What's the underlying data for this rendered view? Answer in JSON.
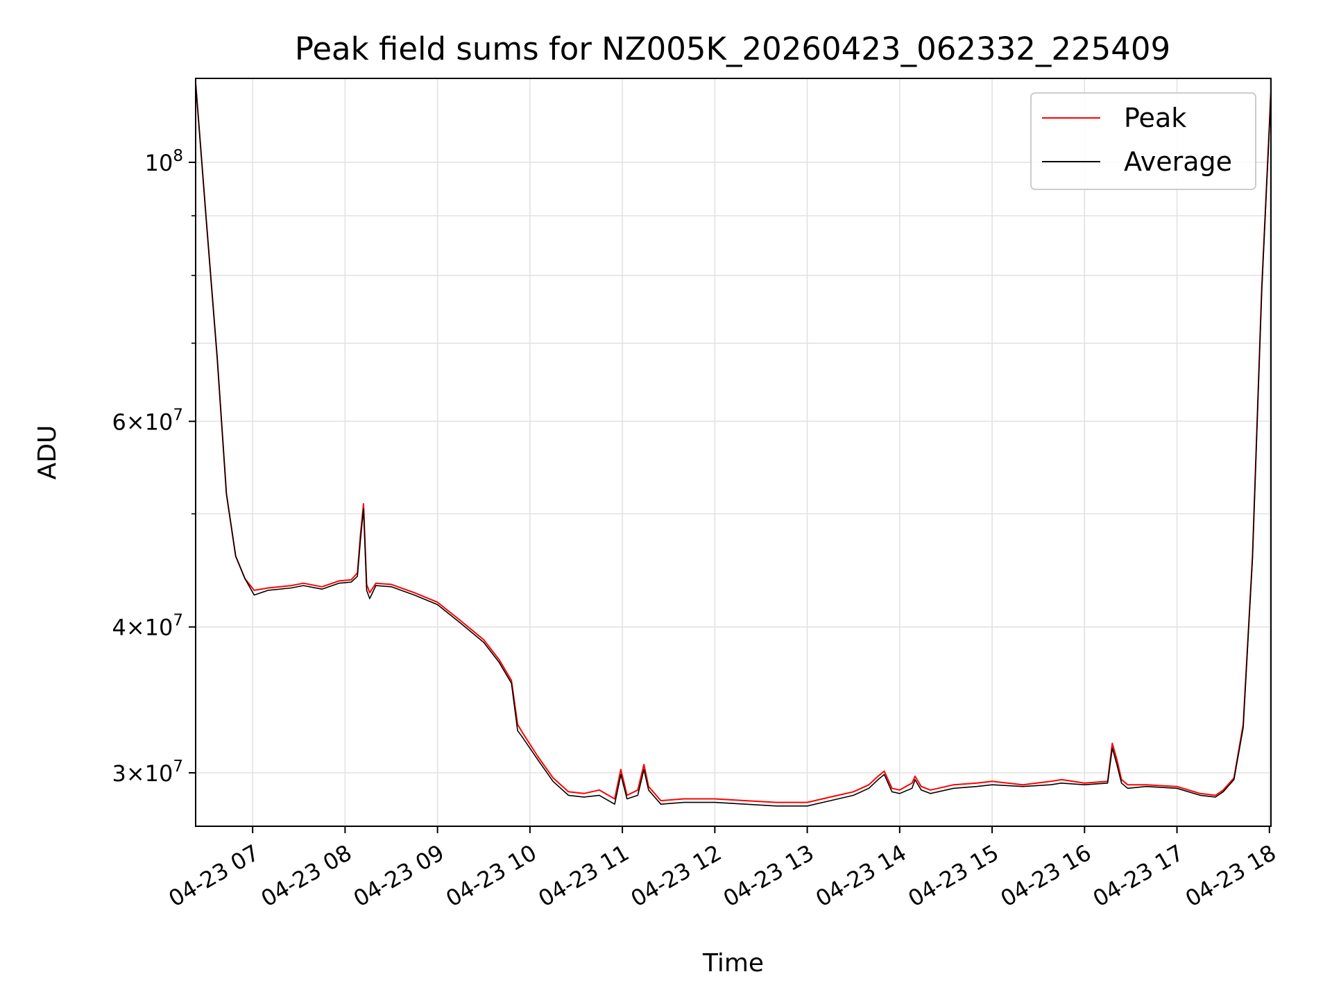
{
  "chart_data": {
    "type": "line",
    "title": "Peak field sums for NZ005K_20260423_062332_225409",
    "xlabel": "Time",
    "ylabel": "ADU",
    "y_scale": "log",
    "xlim": [
      "2026-04-23 06:23",
      "2026-04-23 18:01"
    ],
    "ylim": [
      27000000,
      118000000
    ],
    "grid": true,
    "legend_position": "top-right",
    "x_ticks": [
      {
        "value": "2026-04-23 07:00",
        "label": "04-23 07"
      },
      {
        "value": "2026-04-23 08:00",
        "label": "04-23 08"
      },
      {
        "value": "2026-04-23 09:00",
        "label": "04-23 09"
      },
      {
        "value": "2026-04-23 10:00",
        "label": "04-23 10"
      },
      {
        "value": "2026-04-23 11:00",
        "label": "04-23 11"
      },
      {
        "value": "2026-04-23 12:00",
        "label": "04-23 12"
      },
      {
        "value": "2026-04-23 13:00",
        "label": "04-23 13"
      },
      {
        "value": "2026-04-23 14:00",
        "label": "04-23 14"
      },
      {
        "value": "2026-04-23 15:00",
        "label": "04-23 15"
      },
      {
        "value": "2026-04-23 16:00",
        "label": "04-23 16"
      },
      {
        "value": "2026-04-23 17:00",
        "label": "04-23 17"
      },
      {
        "value": "2026-04-23 18:00",
        "label": "04-23 18"
      }
    ],
    "y_major_ticks": [
      {
        "value": 30000000,
        "label_mantissa": "3×10",
        "label_exp": "7"
      },
      {
        "value": 40000000,
        "label_mantissa": "4×10",
        "label_exp": "7"
      },
      {
        "value": 60000000,
        "label_mantissa": "6×10",
        "label_exp": "7"
      },
      {
        "value": 100000000,
        "label_mantissa": "10",
        "label_exp": "8"
      }
    ],
    "y_minor_ticks": [
      50000000,
      70000000,
      80000000,
      90000000
    ],
    "series": [
      {
        "name": "Peak",
        "color": "#ff0000",
        "x": [
          "2026-04-23 06:23",
          "2026-04-23 06:30",
          "2026-04-23 06:37",
          "2026-04-23 06:43",
          "2026-04-23 06:49",
          "2026-04-23 06:55",
          "2026-04-23 07:01",
          "2026-04-23 07:10",
          "2026-04-23 07:25",
          "2026-04-23 07:33",
          "2026-04-23 07:45",
          "2026-04-23 07:56",
          "2026-04-23 08:04",
          "2026-04-23 08:08",
          "2026-04-23 08:10",
          "2026-04-23 08:12",
          "2026-04-23 08:14",
          "2026-04-23 08:16",
          "2026-04-23 08:20",
          "2026-04-23 08:30",
          "2026-04-23 08:45",
          "2026-04-23 09:00",
          "2026-04-23 09:15",
          "2026-04-23 09:30",
          "2026-04-23 09:40",
          "2026-04-23 09:48",
          "2026-04-23 09:52",
          "2026-04-23 09:55",
          "2026-04-23 10:05",
          "2026-04-23 10:15",
          "2026-04-23 10:25",
          "2026-04-23 10:35",
          "2026-04-23 10:45",
          "2026-04-23 10:55",
          "2026-04-23 10:59",
          "2026-04-23 11:03",
          "2026-04-23 11:10",
          "2026-04-23 11:14",
          "2026-04-23 11:17",
          "2026-04-23 11:25",
          "2026-04-23 11:40",
          "2026-04-23 12:00",
          "2026-04-23 12:20",
          "2026-04-23 12:40",
          "2026-04-23 13:00",
          "2026-04-23 13:15",
          "2026-04-23 13:30",
          "2026-04-23 13:40",
          "2026-04-23 13:46",
          "2026-04-23 13:50",
          "2026-04-23 13:55",
          "2026-04-23 14:00",
          "2026-04-23 14:08",
          "2026-04-23 14:10",
          "2026-04-23 14:14",
          "2026-04-23 14:20",
          "2026-04-23 14:35",
          "2026-04-23 14:50",
          "2026-04-23 15:00",
          "2026-04-23 15:20",
          "2026-04-23 15:38",
          "2026-04-23 15:45",
          "2026-04-23 16:00",
          "2026-04-23 16:15",
          "2026-04-23 16:18",
          "2026-04-23 16:21",
          "2026-04-23 16:24",
          "2026-04-23 16:28",
          "2026-04-23 16:40",
          "2026-04-23 17:00",
          "2026-04-23 17:15",
          "2026-04-23 17:25",
          "2026-04-23 17:30",
          "2026-04-23 17:37",
          "2026-04-23 17:43",
          "2026-04-23 17:49",
          "2026-04-23 17:55",
          "2026-04-23 18:01"
        ],
        "values": [
          117000000,
          89000000,
          68000000,
          52000000,
          46000000,
          44000000,
          43000000,
          43200000,
          43400000,
          43600000,
          43300000,
          43800000,
          43900000,
          44500000,
          48000000,
          51000000,
          43500000,
          42800000,
          43600000,
          43500000,
          42800000,
          42000000,
          40500000,
          39000000,
          37500000,
          36000000,
          33000000,
          32500000,
          31000000,
          29700000,
          28900000,
          28800000,
          29000000,
          28500000,
          30200000,
          28700000,
          29000000,
          30500000,
          29200000,
          28400000,
          28500000,
          28500000,
          28400000,
          28300000,
          28300000,
          28600000,
          28900000,
          29300000,
          29800000,
          30100000,
          29100000,
          29000000,
          29400000,
          29800000,
          29200000,
          29000000,
          29300000,
          29400000,
          29500000,
          29300000,
          29500000,
          29600000,
          29400000,
          29500000,
          31800000,
          30800000,
          29600000,
          29300000,
          29300000,
          29200000,
          28800000,
          28700000,
          29000000,
          29700000,
          33000000,
          46000000,
          78000000,
          115000000
        ]
      },
      {
        "name": "Average",
        "color": "#000000",
        "x": [
          "2026-04-23 06:23",
          "2026-04-23 06:30",
          "2026-04-23 06:37",
          "2026-04-23 06:43",
          "2026-04-23 06:49",
          "2026-04-23 06:55",
          "2026-04-23 07:01",
          "2026-04-23 07:10",
          "2026-04-23 07:25",
          "2026-04-23 07:33",
          "2026-04-23 07:45",
          "2026-04-23 07:56",
          "2026-04-23 08:04",
          "2026-04-23 08:08",
          "2026-04-23 08:10",
          "2026-04-23 08:12",
          "2026-04-23 08:14",
          "2026-04-23 08:16",
          "2026-04-23 08:20",
          "2026-04-23 08:30",
          "2026-04-23 08:45",
          "2026-04-23 09:00",
          "2026-04-23 09:15",
          "2026-04-23 09:30",
          "2026-04-23 09:40",
          "2026-04-23 09:48",
          "2026-04-23 09:52",
          "2026-04-23 09:55",
          "2026-04-23 10:05",
          "2026-04-23 10:15",
          "2026-04-23 10:25",
          "2026-04-23 10:35",
          "2026-04-23 10:45",
          "2026-04-23 10:55",
          "2026-04-23 10:59",
          "2026-04-23 11:03",
          "2026-04-23 11:10",
          "2026-04-23 11:14",
          "2026-04-23 11:17",
          "2026-04-23 11:25",
          "2026-04-23 11:40",
          "2026-04-23 12:00",
          "2026-04-23 12:20",
          "2026-04-23 12:40",
          "2026-04-23 13:00",
          "2026-04-23 13:15",
          "2026-04-23 13:30",
          "2026-04-23 13:40",
          "2026-04-23 13:46",
          "2026-04-23 13:50",
          "2026-04-23 13:55",
          "2026-04-23 14:00",
          "2026-04-23 14:08",
          "2026-04-23 14:10",
          "2026-04-23 14:14",
          "2026-04-23 14:20",
          "2026-04-23 14:35",
          "2026-04-23 14:50",
          "2026-04-23 15:00",
          "2026-04-23 15:20",
          "2026-04-23 15:38",
          "2026-04-23 15:45",
          "2026-04-23 16:00",
          "2026-04-23 16:15",
          "2026-04-23 16:18",
          "2026-04-23 16:21",
          "2026-04-23 16:24",
          "2026-04-23 16:28",
          "2026-04-23 16:40",
          "2026-04-23 17:00",
          "2026-04-23 17:15",
          "2026-04-23 17:25",
          "2026-04-23 17:30",
          "2026-04-23 17:37",
          "2026-04-23 17:43",
          "2026-04-23 17:49",
          "2026-04-23 17:55",
          "2026-04-23 18:01"
        ],
        "values": [
          117000000,
          89000000,
          68000000,
          52000000,
          46000000,
          44000000,
          42600000,
          43000000,
          43200000,
          43400000,
          43100000,
          43600000,
          43700000,
          44200000,
          47500000,
          50500000,
          43000000,
          42300000,
          43400000,
          43300000,
          42600000,
          41800000,
          40300000,
          38800000,
          37300000,
          35800000,
          32600000,
          32200000,
          30800000,
          29500000,
          28700000,
          28600000,
          28700000,
          28200000,
          29900000,
          28500000,
          28700000,
          30200000,
          29000000,
          28200000,
          28300000,
          28300000,
          28200000,
          28100000,
          28100000,
          28400000,
          28700000,
          29100000,
          29600000,
          29900000,
          28900000,
          28800000,
          29100000,
          29600000,
          29000000,
          28800000,
          29100000,
          29200000,
          29300000,
          29200000,
          29300000,
          29400000,
          29300000,
          29400000,
          31500000,
          30500000,
          29400000,
          29100000,
          29200000,
          29100000,
          28700000,
          28600000,
          28900000,
          29600000,
          32800000,
          45800000,
          77500000,
          114500000
        ]
      }
    ]
  }
}
